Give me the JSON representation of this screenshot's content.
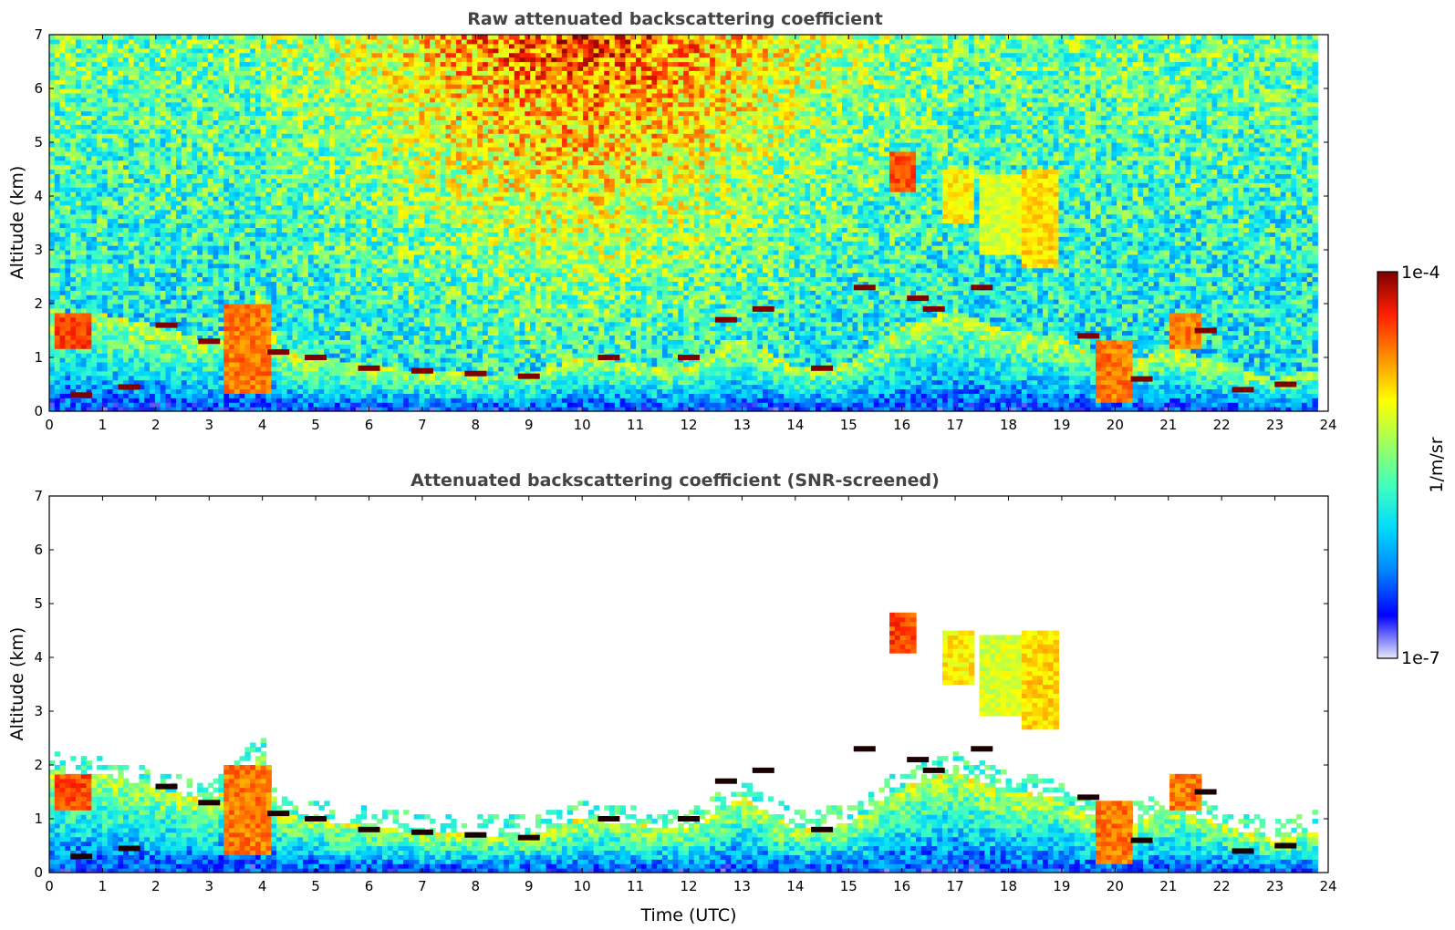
{
  "chart_data": [
    {
      "type": "heatmap",
      "title": "Raw attenuated backscattering coefficient",
      "xlabel": "",
      "ylabel": "Altitude (km)",
      "xlim": [
        0,
        24
      ],
      "ylim": [
        0,
        7
      ],
      "x_ticks": [
        "0",
        "1",
        "2",
        "3",
        "4",
        "5",
        "6",
        "7",
        "8",
        "9",
        "10",
        "11",
        "12",
        "13",
        "14",
        "15",
        "16",
        "17",
        "18",
        "19",
        "20",
        "21",
        "22",
        "23",
        "24"
      ],
      "y_ticks": [
        "0",
        "1",
        "2",
        "3",
        "4",
        "5",
        "6",
        "7"
      ],
      "data_end_hour": 23.8,
      "screened": false,
      "features": {
        "boundary_layer_top_km": [
          [
            0,
            1.9
          ],
          [
            1,
            1.8
          ],
          [
            2,
            1.6
          ],
          [
            3,
            1.3
          ],
          [
            4,
            2.2
          ],
          [
            4.3,
            1.1
          ],
          [
            5,
            1.0
          ],
          [
            6,
            0.85
          ],
          [
            7,
            0.75
          ],
          [
            8,
            0.7
          ],
          [
            9,
            0.7
          ],
          [
            10,
            1.0
          ],
          [
            11,
            0.9
          ],
          [
            12,
            0.8
          ],
          [
            13,
            1.4
          ],
          [
            14,
            0.8
          ],
          [
            15,
            0.9
          ],
          [
            16,
            1.6
          ],
          [
            17,
            1.9
          ],
          [
            18,
            1.5
          ],
          [
            19,
            1.4
          ],
          [
            20,
            0.8
          ],
          [
            21,
            1.2
          ],
          [
            22,
            0.9
          ],
          [
            23,
            0.6
          ],
          [
            23.8,
            0.8
          ]
        ],
        "aerosol_layers": [
          {
            "start_h": 0.1,
            "end_h": 0.8,
            "bottom_km": 1.2,
            "top_km": 1.8,
            "level": 0.85
          },
          {
            "start_h": 3.3,
            "end_h": 4.2,
            "bottom_km": 0.3,
            "top_km": 2.0,
            "level": 0.8
          },
          {
            "start_h": 19.6,
            "end_h": 20.3,
            "bottom_km": 0.2,
            "top_km": 1.3,
            "level": 0.8
          },
          {
            "start_h": 21.0,
            "end_h": 21.6,
            "bottom_km": 1.2,
            "top_km": 1.8,
            "level": 0.8
          }
        ],
        "cirrus": [
          {
            "start_h": 15.8,
            "end_h": 16.3,
            "bottom_km": 4.1,
            "top_km": 4.8,
            "level": 0.85
          },
          {
            "start_h": 16.8,
            "end_h": 17.4,
            "bottom_km": 3.5,
            "top_km": 4.5,
            "level": 0.68
          },
          {
            "start_h": 17.5,
            "end_h": 18.2,
            "bottom_km": 2.9,
            "top_km": 4.4,
            "level": 0.62
          },
          {
            "start_h": 18.2,
            "end_h": 18.9,
            "bottom_km": 2.7,
            "top_km": 4.5,
            "level": 0.7
          }
        ],
        "cloud_base_points": [
          [
            0.6,
            0.3
          ],
          [
            1.5,
            0.45
          ],
          [
            2.2,
            1.6
          ],
          [
            3.0,
            1.3
          ],
          [
            4.3,
            1.1
          ],
          [
            5.0,
            1.0
          ],
          [
            6.0,
            0.8
          ],
          [
            7.0,
            0.75
          ],
          [
            8.0,
            0.7
          ],
          [
            9.0,
            0.65
          ],
          [
            10.5,
            1.0
          ],
          [
            12.0,
            1.0
          ],
          [
            12.7,
            1.7
          ],
          [
            13.4,
            1.9
          ],
          [
            14.5,
            0.8
          ],
          [
            15.3,
            2.3
          ],
          [
            16.3,
            2.1
          ],
          [
            16.6,
            1.9
          ],
          [
            17.5,
            2.3
          ],
          [
            19.5,
            1.4
          ],
          [
            20.5,
            0.6
          ],
          [
            21.7,
            1.5
          ],
          [
            22.4,
            0.4
          ],
          [
            23.2,
            0.5
          ]
        ]
      }
    },
    {
      "type": "heatmap",
      "title": "Attenuated backscattering coefficient (SNR-screened)",
      "xlabel": "Time (UTC)",
      "ylabel": "Altitude (km)",
      "xlim": [
        0,
        24
      ],
      "ylim": [
        0,
        7
      ],
      "x_ticks": [
        "0",
        "1",
        "2",
        "3",
        "4",
        "5",
        "6",
        "7",
        "8",
        "9",
        "10",
        "11",
        "12",
        "13",
        "14",
        "15",
        "16",
        "17",
        "18",
        "19",
        "20",
        "21",
        "22",
        "23",
        "24"
      ],
      "y_ticks": [
        "0",
        "1",
        "2",
        "3",
        "4",
        "5",
        "6",
        "7"
      ],
      "data_end_hour": 23.8,
      "screened": true
    }
  ],
  "colorbar": {
    "label": "1/m/sr",
    "max_label": "1e-4",
    "min_label": "1e-7",
    "scale": "log",
    "range": [
      1e-07,
      0.0001
    ],
    "colormap": [
      "#e8e8f8",
      "#0000ff",
      "#0080ff",
      "#00d8ff",
      "#40ffbf",
      "#a0ff60",
      "#ffff00",
      "#ff9000",
      "#ff2000",
      "#800000"
    ]
  }
}
